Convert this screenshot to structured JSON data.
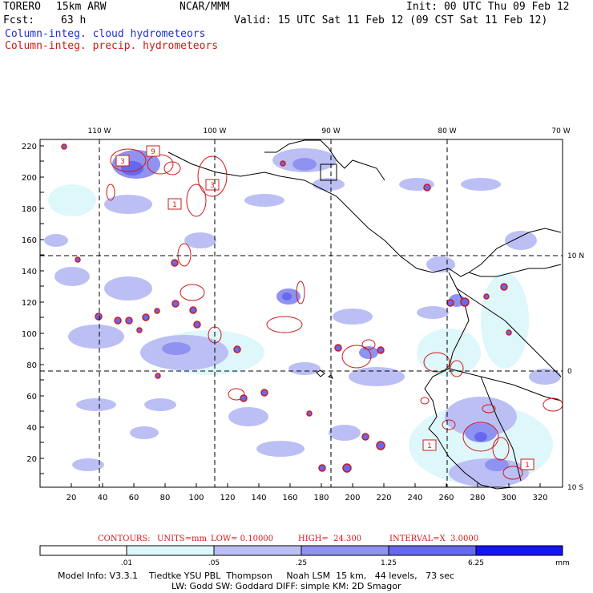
{
  "header": {
    "model_name": "TORERO",
    "resolution": "15km ARW",
    "org": "NCAR/MMM",
    "init_label": "Init: 00 UTC Thu 09 Feb 12",
    "fcst_label": "Fcst:",
    "fcst_value": "63 h",
    "valid_label": "Valid: 15 UTC Sat 11 Feb 12 (09 CST Sat 11 Feb 12)",
    "field_cloud": "Column-integ. cloud hydrometeors",
    "field_precip": "Column-integ. precip. hydrometeors"
  },
  "colors": {
    "cloud_blue": "#1f2fd0",
    "precip_red": "#d01818",
    "shade_1": "#def7fb",
    "shade_2": "#bbbff4",
    "shade_3": "#8f92f0",
    "shade_4": "#6668ee",
    "shade_5": "#3a3cf0",
    "shade_6": "#1414f4"
  },
  "map": {
    "lon_labels": [
      "110 W",
      "100 W",
      "90 W",
      "80 W",
      "70 W"
    ],
    "lat_labels": [
      "10 N",
      "0",
      "10 S"
    ],
    "y_ticks": [
      "220",
      "200",
      "180",
      "160",
      "140",
      "120",
      "100",
      "80",
      "60",
      "40",
      "20"
    ],
    "x_ticks": [
      "20",
      "40",
      "60",
      "80",
      "100",
      "120",
      "140",
      "160",
      "180",
      "200",
      "220",
      "240",
      "260",
      "280",
      "300",
      "320"
    ],
    "contour_labels": [
      "3",
      "9",
      "3",
      "1",
      "1",
      "1"
    ]
  },
  "contours_line": {
    "label": "CONTOURS:",
    "units": "UNITS=mm",
    "low": "LOW= 0.10000",
    "high": "HIGH=  24.300",
    "interval": "INTERVAL=X  3.0000"
  },
  "colorbar": {
    "ticks": [
      ".01",
      ".05",
      ".25",
      "1.25",
      "6.25"
    ],
    "unit": "mm"
  },
  "model_info": {
    "line1": "Model Info: V3.3.1    Tiedtke YSU PBL  Thompson     Noah LSM  15 km,   44 levels,   73 sec",
    "line2": "LW: Godd SW: Goddard DIFF: simple KM: 2D Smagor"
  }
}
